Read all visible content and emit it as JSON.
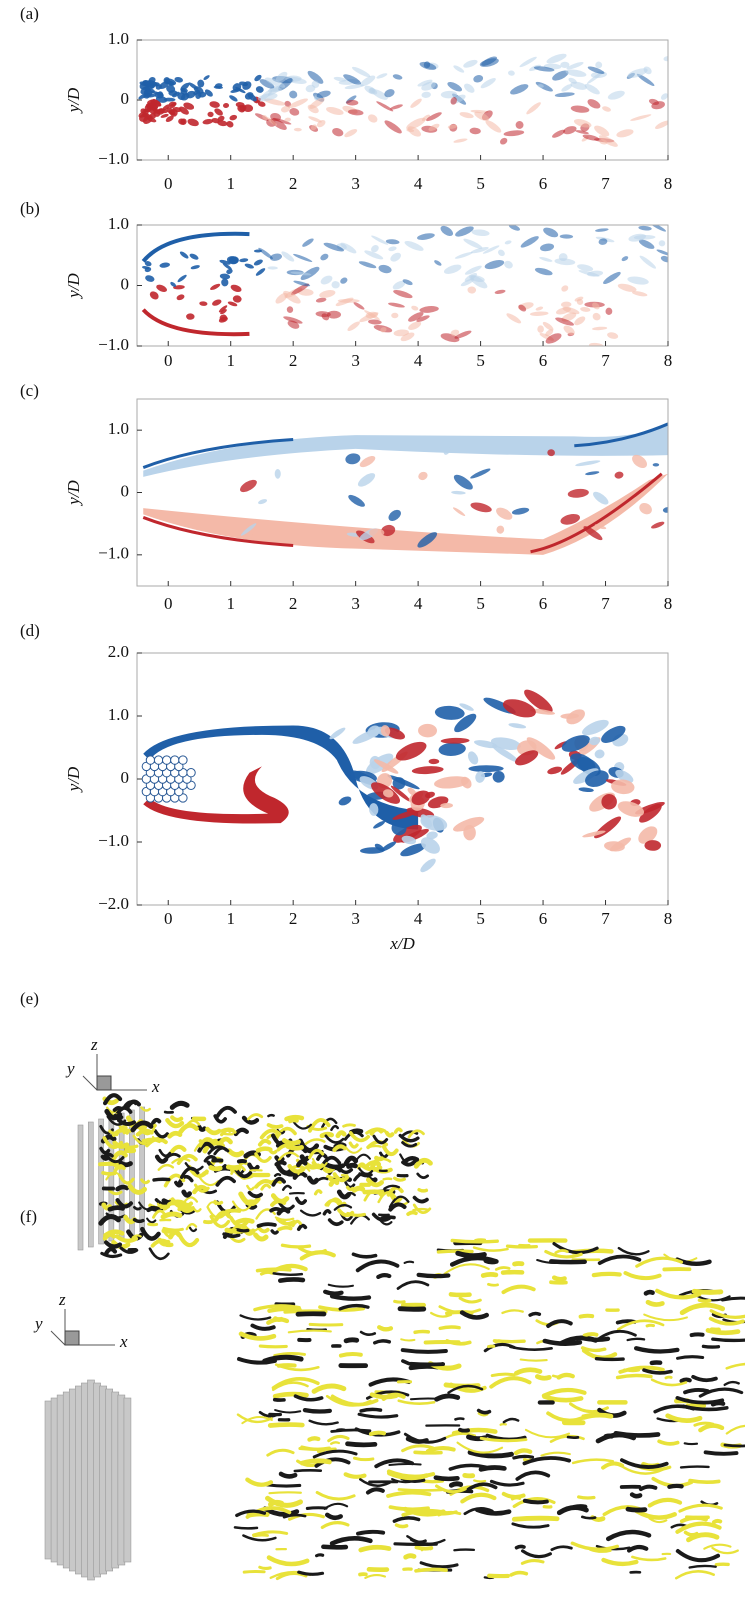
{
  "panels": [
    {
      "label": "(a)",
      "ylabel": "y/D",
      "xlim": [
        -0.5,
        8
      ],
      "ylim": [
        -1,
        1
      ],
      "xticks": [
        0,
        1,
        2,
        3,
        4,
        5,
        6,
        7,
        8
      ],
      "yticks": [
        {
          "value": 1,
          "label": "1.0"
        },
        0,
        {
          "value": -1,
          "label": "−1.0"
        }
      ]
    },
    {
      "label": "(b)",
      "ylabel": "y/D",
      "xlim": [
        -0.5,
        8
      ],
      "ylim": [
        -1,
        1
      ],
      "xticks": [
        0,
        1,
        2,
        3,
        4,
        5,
        6,
        7,
        8
      ],
      "yticks": [
        {
          "value": 1,
          "label": "1.0"
        },
        0,
        {
          "value": -1,
          "label": "−1.0"
        }
      ]
    },
    {
      "label": "(c)",
      "ylabel": "y/D",
      "xlim": [
        -0.5,
        8
      ],
      "ylim": [
        -1.5,
        1.5
      ],
      "xticks": [
        0,
        1,
        2,
        3,
        4,
        5,
        6,
        7,
        8
      ],
      "yticks": [
        {
          "value": 1,
          "label": "1.0"
        },
        0,
        {
          "value": -1,
          "label": "−1.0"
        }
      ]
    },
    {
      "label": "(d)",
      "ylabel": "y/D",
      "xlabel": "x/D",
      "xlim": [
        -0.5,
        8
      ],
      "ylim": [
        -2,
        2
      ],
      "xticks": [
        0,
        1,
        2,
        3,
        4,
        5,
        6,
        7,
        8
      ],
      "yticks": [
        {
          "value": 2,
          "label": "2.0"
        },
        {
          "value": 1,
          "label": "1.0"
        },
        0,
        {
          "value": -1,
          "label": "−1.0"
        },
        {
          "value": -2,
          "label": "−2.0"
        }
      ]
    }
  ],
  "views": [
    {
      "label": "(e)",
      "axes": [
        "z",
        "y",
        "x"
      ]
    },
    {
      "label": "(f)",
      "axes": [
        "z",
        "y",
        "x"
      ]
    }
  ]
}
